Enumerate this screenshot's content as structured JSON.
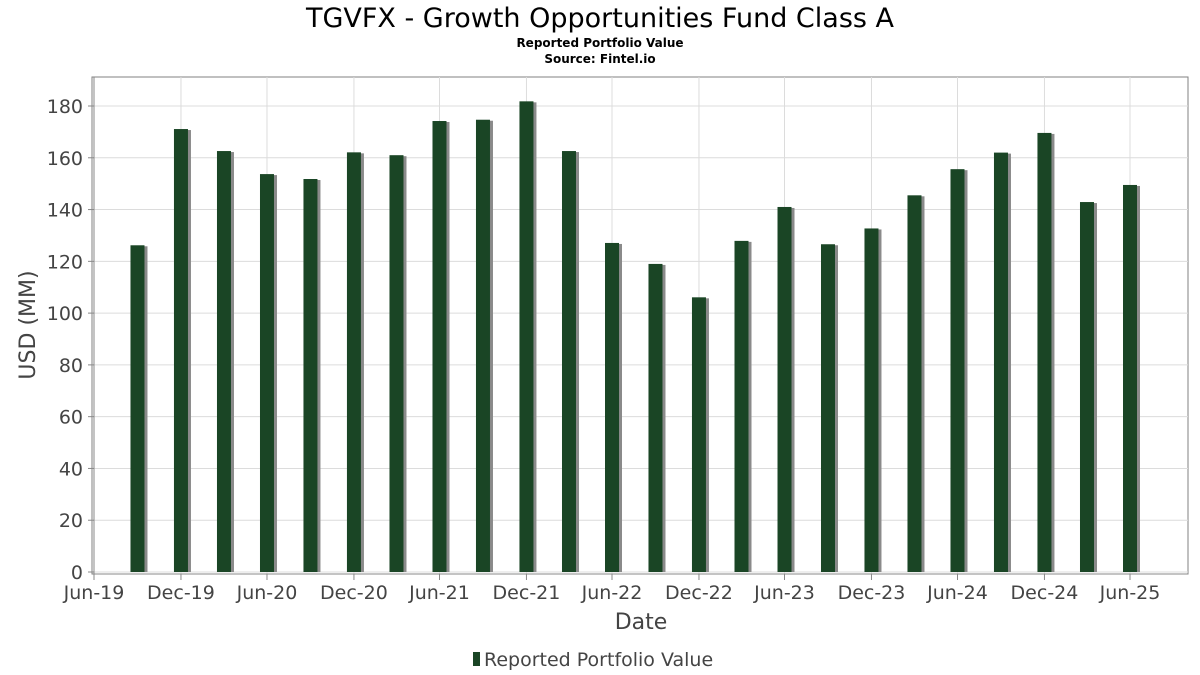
{
  "colors": {
    "bar": "#1a4525",
    "bar_shadow": "#8a8a8a",
    "grid": "#dcdcdc",
    "axis": "#888888",
    "plot_border": "#808080"
  },
  "chart_data": {
    "type": "bar",
    "title": "TGVFX - Growth Opportunities Fund Class A",
    "subtitle": "Reported Portfolio Value",
    "source": "Source: Fintel.io",
    "xlabel": "Date",
    "ylabel": "USD (MM)",
    "xlim": [
      "2019-06-01",
      "2025-10-01"
    ],
    "ylim": [
      0,
      190
    ],
    "grid": true,
    "legend_position": "bottom-center",
    "x_ticks": [
      {
        "date": "2019-06-30",
        "label": "Jun-19"
      },
      {
        "date": "2019-12-31",
        "label": "Dec-19"
      },
      {
        "date": "2020-06-30",
        "label": "Jun-20"
      },
      {
        "date": "2020-12-31",
        "label": "Dec-20"
      },
      {
        "date": "2021-06-30",
        "label": "Jun-21"
      },
      {
        "date": "2021-12-31",
        "label": "Dec-21"
      },
      {
        "date": "2022-06-30",
        "label": "Jun-22"
      },
      {
        "date": "2022-12-31",
        "label": "Dec-22"
      },
      {
        "date": "2023-06-30",
        "label": "Jun-23"
      },
      {
        "date": "2023-12-31",
        "label": "Dec-23"
      },
      {
        "date": "2024-06-30",
        "label": "Jun-24"
      },
      {
        "date": "2024-12-31",
        "label": "Dec-24"
      },
      {
        "date": "2025-06-30",
        "label": "Jun-25"
      }
    ],
    "y_ticks": [
      0,
      20,
      40,
      60,
      80,
      100,
      120,
      140,
      160,
      180
    ],
    "series": [
      {
        "name": "Reported Portfolio Value",
        "x": [
          "2019-09-30",
          "2019-12-31",
          "2020-03-31",
          "2020-06-30",
          "2020-09-30",
          "2020-12-31",
          "2021-03-31",
          "2021-06-30",
          "2021-09-30",
          "2021-12-31",
          "2022-03-31",
          "2022-06-30",
          "2022-09-30",
          "2022-12-31",
          "2023-03-31",
          "2023-06-30",
          "2023-09-30",
          "2023-12-31",
          "2024-03-31",
          "2024-06-30",
          "2024-09-30",
          "2024-12-31",
          "2025-03-31",
          "2025-06-30"
        ],
        "values": [
          126.2,
          171.1,
          162.6,
          153.7,
          151.8,
          162.1,
          161.0,
          174.2,
          174.7,
          181.8,
          162.6,
          127.1,
          119.0,
          106.1,
          127.9,
          141.0,
          126.6,
          132.7,
          145.5,
          155.6,
          162.0,
          169.6,
          142.9,
          149.5
        ]
      }
    ]
  }
}
